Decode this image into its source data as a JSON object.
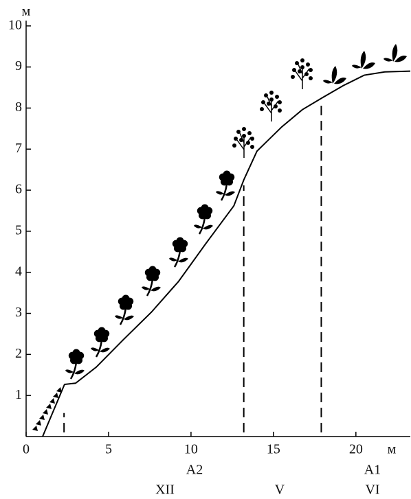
{
  "chart_data": {
    "type": "line",
    "x": [
      1.0,
      2.33,
      3.0,
      4.25,
      5.9,
      7.6,
      9.25,
      10.9,
      12.6,
      13.2,
      14.0,
      15.5,
      16.75,
      18.0,
      19.25,
      20.5,
      21.75,
      23.3
    ],
    "values": [
      0,
      1.27,
      1.3,
      1.69,
      2.36,
      3.03,
      3.78,
      4.7,
      5.62,
      6.25,
      6.95,
      7.54,
      7.96,
      8.26,
      8.55,
      8.8,
      8.88,
      8.9
    ],
    "color": "#000000",
    "xlim": [
      0,
      23.3
    ],
    "ylim": [
      0,
      10.13
    ],
    "xticks": [
      0,
      5,
      10,
      15,
      20
    ],
    "yticks": [
      1,
      2,
      3,
      4,
      5,
      6,
      7,
      8,
      9,
      10
    ],
    "x_unit": "м",
    "y_unit": "м",
    "boundaries": [
      2.3,
      13.2,
      17.9
    ],
    "zone_labels": [
      "A2",
      "XII",
      "V",
      "A1",
      "VI"
    ]
  }
}
